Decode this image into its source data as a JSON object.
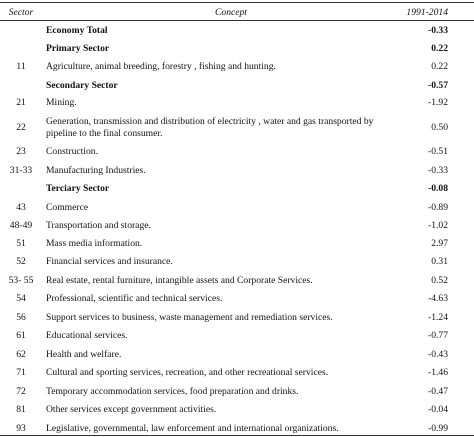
{
  "header": {
    "sector": "Sector",
    "concept": "Concept",
    "period": "1991-2014"
  },
  "rows": [
    {
      "sector": "",
      "concept": "Economy Total",
      "value": "-0.33",
      "bold": true
    },
    {
      "sector": "",
      "concept": "Primary Sector",
      "value": "0.22",
      "bold": true
    },
    {
      "sector": "11",
      "concept": "Agriculture, animal breeding, forestry , fishing and hunting.",
      "value": "0.22"
    },
    {
      "sector": "",
      "concept": "Secondary Sector",
      "value": "-0.57",
      "bold": true
    },
    {
      "sector": "21",
      "concept": "Mining.",
      "value": "-1.92"
    },
    {
      "sector": "22",
      "concept": "Generation, transmission and distribution of electricity , water and gas transported by",
      "concept2": "pipeline to the final consumer.",
      "value": "0.50"
    },
    {
      "sector": "23",
      "concept": "Construction.",
      "value": "-0.51"
    },
    {
      "sector": "31-33",
      "concept": "Manufacturing Industries.",
      "value": "-0.33"
    },
    {
      "sector": "",
      "concept": "Terciary Sector",
      "value": "-0.08",
      "bold": true
    },
    {
      "sector": "43",
      "concept": "Commerce",
      "value": "-0.89"
    },
    {
      "sector": "48-49",
      "concept": "Transportation and storage.",
      "value": "-1.02"
    },
    {
      "sector": "51",
      "concept": "Mass media information.",
      "value": "2.97"
    },
    {
      "sector": "52",
      "concept": "Financial services and insurance.",
      "value": "0.31"
    },
    {
      "sector": "53- 55",
      "concept": "Real estate, rental furniture, intangible assets and Corporate Services.",
      "value": "0.52"
    },
    {
      "sector": "54",
      "concept": "Professional, scientific and technical services.",
      "value": "-4.63"
    },
    {
      "sector": "56",
      "concept": "Support services to business, waste management and remediation services.",
      "value": "-1.24"
    },
    {
      "sector": "61",
      "concept": "Educational services.",
      "value": "-0.77"
    },
    {
      "sector": "62",
      "concept": "Health and welfare.",
      "value": "-0.43"
    },
    {
      "sector": "71",
      "concept": "Cultural and sporting services, recreation, and other recreational services.",
      "value": "-1.46"
    },
    {
      "sector": "72",
      "concept": "Temporary accommodation services, food preparation and drinks.",
      "value": "-0.47"
    },
    {
      "sector": "81",
      "concept": "Other services except government activities.",
      "value": "-0.04"
    },
    {
      "sector": "93",
      "concept": "Legislative, governmental, law enforcement and international organizations.",
      "value": "-0.99"
    }
  ]
}
